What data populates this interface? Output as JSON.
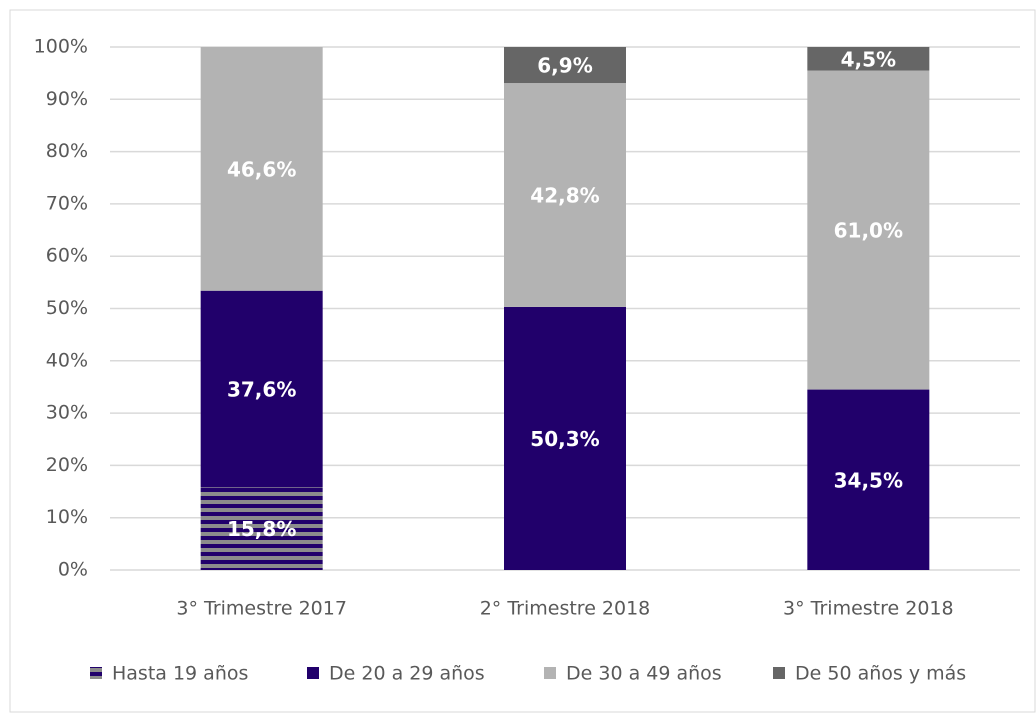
{
  "chart_data": {
    "type": "stacked-bar",
    "categories": [
      "3° Trimestre 2017",
      "2° Trimestre 2018",
      "3° Trimestre 2018"
    ],
    "series": [
      {
        "name": "Hasta 19 años",
        "color": "#21006b",
        "hatch_color": "#8c8c8c",
        "hatch": true,
        "values": [
          15.8,
          null,
          null
        ],
        "value_labels": [
          "15,8%",
          null,
          null
        ]
      },
      {
        "name": "De 20 a 29 años",
        "color": "#21006b",
        "values": [
          37.6,
          50.3,
          34.5
        ],
        "value_labels": [
          "37,6%",
          "50,3%",
          "34,5%"
        ]
      },
      {
        "name": "De 30 a 49 años",
        "color": "#b3b3b3",
        "values": [
          46.6,
          42.8,
          61.0
        ],
        "value_labels": [
          "46,6%",
          "42,8%",
          "61,0%"
        ]
      },
      {
        "name": "De 50 años y más",
        "color": "#666666",
        "values": [
          null,
          6.9,
          4.5
        ],
        "value_labels": [
          null,
          "6,9%",
          "4,5%"
        ]
      }
    ],
    "ylim": [
      0,
      100
    ],
    "yticks": [
      {
        "value": 0,
        "label": "0%"
      },
      {
        "value": 10,
        "label": "10%"
      },
      {
        "value": 20,
        "label": "20%"
      },
      {
        "value": 30,
        "label": "30%"
      },
      {
        "value": 40,
        "label": "40%"
      },
      {
        "value": 50,
        "label": "50%"
      },
      {
        "value": 60,
        "label": "60%"
      },
      {
        "value": 70,
        "label": "70%"
      },
      {
        "value": 80,
        "label": "80%"
      },
      {
        "value": 90,
        "label": "90%"
      },
      {
        "value": 100,
        "label": "100%"
      }
    ],
    "grid": true,
    "legend": "bottom"
  }
}
